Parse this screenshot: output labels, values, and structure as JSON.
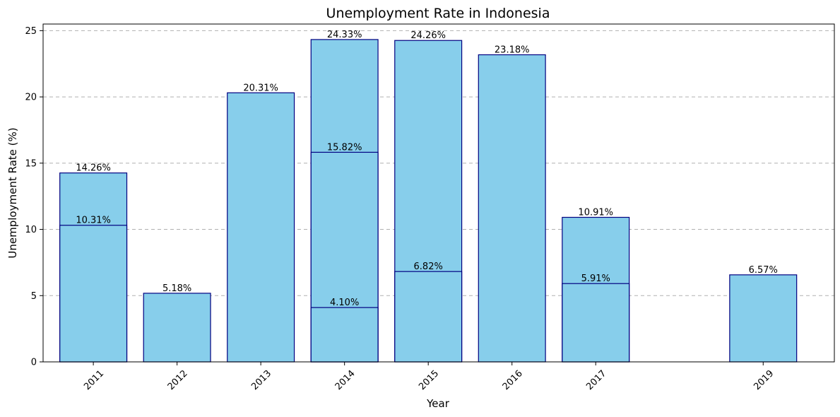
{
  "chart_data": {
    "type": "bar",
    "title": "Unemployment Rate in Indonesia",
    "xlabel": "Year",
    "ylabel": "Unemployment Rate (%)",
    "ylim": [
      0,
      25.5
    ],
    "y_ticks": [
      0,
      5,
      10,
      15,
      20,
      25
    ],
    "x_ticks": [
      2011,
      2012,
      2013,
      2014,
      2015,
      2016,
      2017,
      2019
    ],
    "xlim": [
      2010.4,
      2019.85
    ],
    "grid": "y-dashed",
    "colors": {
      "bar_fill": "#87CEEB",
      "bar_edge": "#000080"
    },
    "bars": [
      {
        "year": 2011,
        "value": 14.26,
        "label": "14.26%"
      },
      {
        "year": 2011,
        "value": 10.31,
        "label": "10.31%"
      },
      {
        "year": 2012,
        "value": 5.18,
        "label": "5.18%"
      },
      {
        "year": 2013,
        "value": 20.31,
        "label": "20.31%"
      },
      {
        "year": 2014,
        "value": 24.33,
        "label": "24.33%"
      },
      {
        "year": 2014,
        "value": 15.82,
        "label": "15.82%"
      },
      {
        "year": 2014,
        "value": 4.1,
        "label": "4.10%"
      },
      {
        "year": 2015,
        "value": 24.26,
        "label": "24.26%"
      },
      {
        "year": 2015,
        "value": 6.82,
        "label": "6.82%"
      },
      {
        "year": 2016,
        "value": 23.18,
        "label": "23.18%"
      },
      {
        "year": 2017,
        "value": 10.91,
        "label": "10.91%"
      },
      {
        "year": 2017,
        "value": 5.91,
        "label": "5.91%"
      },
      {
        "year": 2019,
        "value": 6.57,
        "label": "6.57%"
      }
    ]
  }
}
